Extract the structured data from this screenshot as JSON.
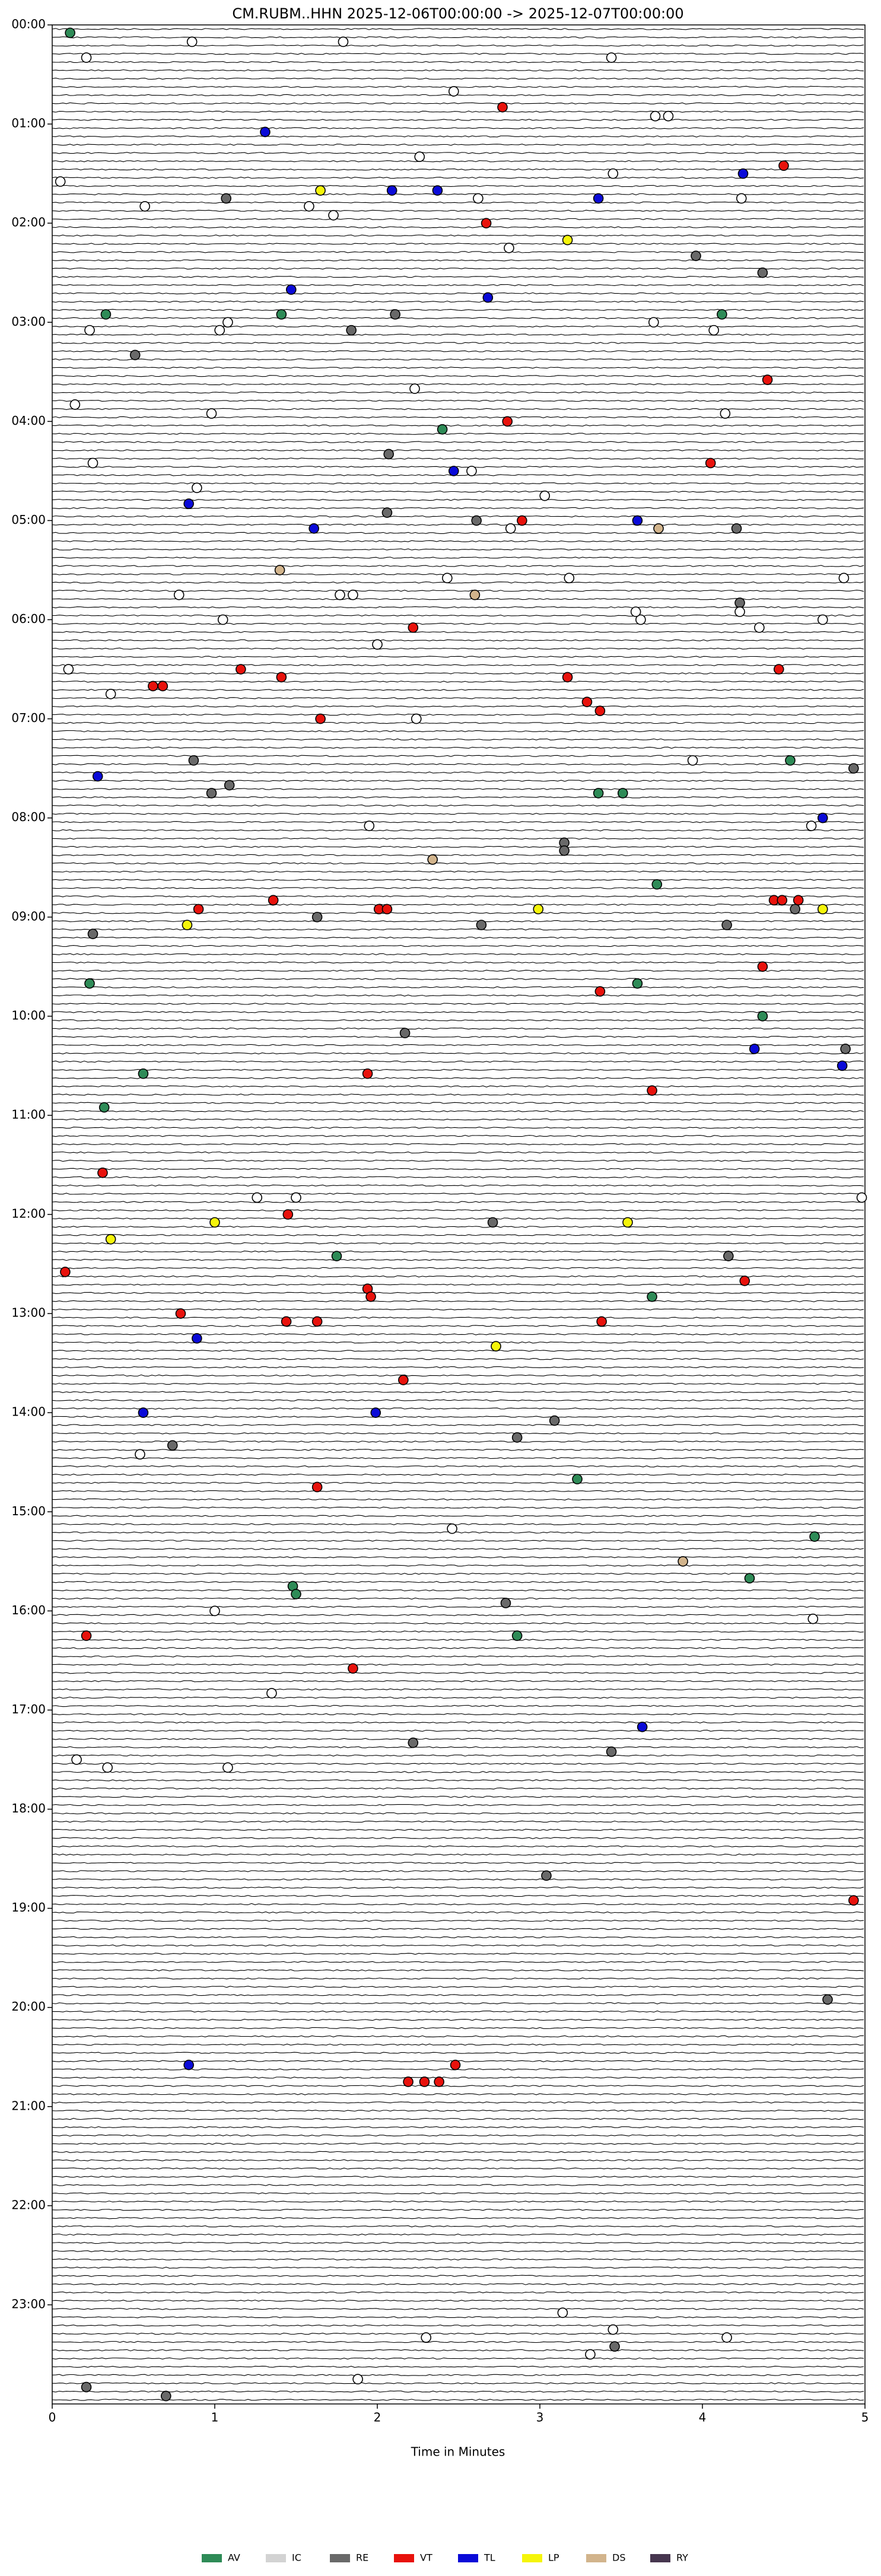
{
  "chart_data": {
    "type": "scatter",
    "title": "CM.RUBM..HHN  2025-12-06T00:00:00 -> 2025-12-07T00:00:00",
    "x_label": "Time in Minutes",
    "xlim": [
      0,
      5
    ],
    "xticks": [
      0,
      1,
      2,
      3,
      4,
      5
    ],
    "ylim": [
      0,
      24
    ],
    "yticks": [
      {
        "value": 0,
        "label": "00:00"
      },
      {
        "value": 1,
        "label": "01:00"
      },
      {
        "value": 2,
        "label": "02:00"
      },
      {
        "value": 3,
        "label": "03:00"
      },
      {
        "value": 4,
        "label": "04:00"
      },
      {
        "value": 5,
        "label": "05:00"
      },
      {
        "value": 6,
        "label": "06:00"
      },
      {
        "value": 7,
        "label": "07:00"
      },
      {
        "value": 8,
        "label": "08:00"
      },
      {
        "value": 9,
        "label": "09:00"
      },
      {
        "value": 10,
        "label": "10:00"
      },
      {
        "value": 11,
        "label": "11:00"
      },
      {
        "value": 12,
        "label": "12:00"
      },
      {
        "value": 13,
        "label": "13:00"
      },
      {
        "value": 14,
        "label": "14:00"
      },
      {
        "value": 15,
        "label": "15:00"
      },
      {
        "value": 16,
        "label": "16:00"
      },
      {
        "value": 17,
        "label": "17:00"
      },
      {
        "value": 18,
        "label": "18:00"
      },
      {
        "value": 19,
        "label": "19:00"
      },
      {
        "value": 20,
        "label": "20:00"
      },
      {
        "value": 21,
        "label": "21:00"
      },
      {
        "value": 22,
        "label": "22:00"
      },
      {
        "value": 23,
        "label": "23:00"
      }
    ],
    "series": [
      {
        "name": "AV",
        "color": "#2e8b57",
        "x": [
          0.11,
          0.33,
          1.41,
          4.12,
          2.4,
          3.36,
          3.51,
          4.54,
          3.72,
          0.23,
          3.6,
          4.37,
          0.56,
          0.32,
          1.75,
          3.69,
          3.23,
          4.69,
          1.48,
          1.5,
          4.29,
          2.86
        ],
        "values": [
          0.08,
          2.92,
          2.92,
          2.92,
          4.08,
          7.75,
          7.75,
          7.42,
          8.67,
          9.67,
          9.67,
          10.0,
          10.58,
          10.92,
          12.42,
          12.83,
          14.67,
          15.25,
          15.75,
          15.83,
          15.67,
          16.25
        ]
      },
      {
        "name": "IC",
        "color": "#d3d3d3",
        "x": [],
        "values": []
      },
      {
        "name": "RE",
        "color": "#696969",
        "x": [
          1.07,
          3.96,
          4.37,
          2.11,
          1.84,
          0.51,
          2.07,
          2.06,
          2.61,
          4.21,
          4.23,
          0.87,
          1.09,
          0.98,
          4.93,
          3.15,
          3.15,
          1.63,
          2.64,
          4.15,
          0.25,
          4.57,
          2.17,
          4.88,
          2.71,
          4.16,
          2.86,
          3.09,
          0.74,
          2.79,
          2.22,
          3.44,
          3.04,
          4.77,
          3.46,
          0.21,
          0.7
        ],
        "values": [
          1.75,
          2.33,
          2.5,
          2.92,
          3.08,
          3.33,
          4.33,
          4.92,
          5.0,
          5.08,
          5.83,
          7.42,
          7.67,
          7.75,
          7.5,
          8.25,
          8.33,
          9.0,
          9.08,
          9.08,
          9.17,
          8.92,
          10.17,
          10.33,
          12.08,
          12.42,
          14.25,
          14.08,
          14.33,
          15.92,
          17.33,
          17.42,
          18.67,
          19.92,
          23.42,
          23.83,
          23.92
        ]
      },
      {
        "name": "VT",
        "color": "#e8120c",
        "x": [
          2.77,
          4.5,
          2.67,
          4.4,
          2.8,
          4.05,
          2.89,
          2.22,
          1.16,
          1.41,
          0.62,
          0.68,
          3.17,
          3.29,
          3.37,
          4.47,
          1.65,
          0.9,
          1.36,
          2.01,
          2.06,
          4.44,
          4.49,
          4.59,
          4.37,
          3.37,
          1.94,
          3.69,
          0.31,
          1.45,
          0.08,
          1.94,
          1.96,
          0.79,
          1.44,
          1.63,
          3.38,
          4.26,
          2.16,
          1.63,
          0.21,
          1.85,
          4.93,
          2.48,
          2.19,
          2.29,
          2.38
        ],
        "values": [
          0.83,
          1.42,
          2.0,
          3.58,
          4.0,
          4.42,
          5.0,
          6.08,
          6.5,
          6.58,
          6.67,
          6.67,
          6.58,
          6.83,
          6.92,
          6.5,
          7.0,
          8.92,
          8.83,
          8.92,
          8.92,
          8.83,
          8.83,
          8.83,
          9.5,
          9.75,
          10.58,
          10.75,
          11.58,
          12.0,
          12.58,
          12.75,
          12.83,
          13.0,
          13.08,
          13.08,
          13.08,
          12.67,
          13.67,
          14.75,
          16.25,
          16.58,
          18.92,
          20.58,
          20.75,
          20.75,
          20.75
        ]
      },
      {
        "name": "TL",
        "color": "#0a0ad8",
        "x": [
          1.31,
          4.25,
          2.09,
          2.37,
          3.36,
          1.47,
          2.68,
          2.47,
          0.84,
          1.61,
          3.6,
          0.28,
          4.74,
          4.32,
          4.86,
          0.89,
          0.56,
          1.99,
          3.63,
          0.84
        ],
        "values": [
          1.08,
          1.5,
          1.67,
          1.67,
          1.75,
          2.67,
          2.75,
          4.5,
          4.83,
          5.08,
          5.0,
          7.58,
          8.0,
          10.33,
          10.5,
          13.25,
          14.0,
          14.0,
          17.17,
          20.58
        ]
      },
      {
        "name": "LP",
        "color": "#f5f50a",
        "x": [
          1.65,
          3.17,
          0.83,
          2.99,
          4.74,
          0.36,
          1.0,
          3.54,
          2.73
        ],
        "values": [
          1.67,
          2.17,
          9.08,
          8.92,
          8.92,
          12.25,
          12.08,
          12.08,
          13.33
        ]
      },
      {
        "name": "DS",
        "color": "#d2b48c",
        "x": [
          2.34,
          3.73,
          1.4,
          2.6,
          3.88
        ],
        "values": [
          8.42,
          5.08,
          5.5,
          5.75,
          15.5
        ]
      },
      {
        "name": "RY",
        "color": "#47364f",
        "x": [],
        "values": []
      },
      {
        "color": "#ffffff",
        "x": [
          0.86,
          1.79,
          0.21,
          3.44,
          2.47,
          3.71,
          3.79,
          0.05,
          2.26,
          3.45,
          0.57,
          1.58,
          1.73,
          2.62,
          2.81,
          4.24,
          0.23,
          1.08,
          1.03,
          3.7,
          4.07,
          2.23,
          0.14,
          4.14,
          0.98,
          0.25,
          2.58,
          3.03,
          0.89,
          2.82,
          2.43,
          1.85,
          4.87,
          1.77,
          3.18,
          0.78,
          1.05,
          3.62,
          3.59,
          4.35,
          4.74,
          2.0,
          0.36,
          0.1,
          3.94,
          2.24,
          4.23,
          1.95,
          4.67,
          1.5,
          4.98,
          1.26,
          0.54,
          2.46,
          1.0,
          4.68,
          1.35,
          0.15,
          0.34,
          1.08,
          3.14,
          1.88,
          3.45,
          4.15,
          3.31,
          2.3
        ],
        "values": [
          0.17,
          0.17,
          0.33,
          0.33,
          0.67,
          0.92,
          0.92,
          1.58,
          1.33,
          1.5,
          1.83,
          1.83,
          1.92,
          1.75,
          2.25,
          1.75,
          3.08,
          3.0,
          3.08,
          3.0,
          3.08,
          3.67,
          3.83,
          3.92,
          3.92,
          4.42,
          4.5,
          4.75,
          4.67,
          5.08,
          5.58,
          5.75,
          5.58,
          5.75,
          5.58,
          5.75,
          6.0,
          6.0,
          5.92,
          6.08,
          6.0,
          6.25,
          6.75,
          6.5,
          7.42,
          7.0,
          5.92,
          8.08,
          8.08,
          11.83,
          11.83,
          11.83,
          14.42,
          15.17,
          16.0,
          16.08,
          16.83,
          17.5,
          17.58,
          17.58,
          23.08,
          23.75,
          23.25,
          23.33,
          23.5,
          23.33
        ]
      }
    ]
  }
}
